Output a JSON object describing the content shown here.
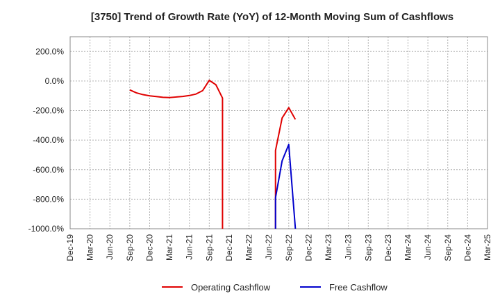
{
  "chart_data": {
    "type": "line",
    "title": "[3750]  Trend of Growth Rate (YoY) of 12-Month Moving Sum of Cashflows",
    "xlabel": "",
    "ylabel": "",
    "x_ticks": [
      "Dec-19",
      "Mar-20",
      "Jun-20",
      "Sep-20",
      "Dec-20",
      "Mar-21",
      "Jun-21",
      "Sep-21",
      "Dec-21",
      "Mar-22",
      "Jun-22",
      "Sep-22",
      "Dec-22",
      "Mar-23",
      "Jun-23",
      "Sep-23",
      "Dec-23",
      "Mar-24",
      "Jun-24",
      "Sep-24",
      "Dec-24",
      "Mar-25"
    ],
    "y_ticks": [
      "200.0%",
      "0.0%",
      "-200.0%",
      "-400.0%",
      "-600.0%",
      "-800.0%",
      "-1000.0%"
    ],
    "ylim": [
      -1000,
      300
    ],
    "grid": true,
    "legend_position": "bottom",
    "series": [
      {
        "name": "Operating Cashflow",
        "color": "#e00000",
        "points": [
          [
            "Sep-20",
            -60
          ],
          [
            "Oct-20",
            -80
          ],
          [
            "Nov-20",
            -92
          ],
          [
            "Dec-20",
            -100
          ],
          [
            "Jan-21",
            -105
          ],
          [
            "Feb-21",
            -110
          ],
          [
            "Mar-21",
            -112
          ],
          [
            "Apr-21",
            -108
          ],
          [
            "May-21",
            -104
          ],
          [
            "Jun-21",
            -98
          ],
          [
            "Jul-21",
            -88
          ],
          [
            "Aug-21",
            -65
          ],
          [
            "Sep-21",
            5
          ],
          [
            "Oct-21",
            -25
          ],
          [
            "Nov-21",
            -115
          ],
          [
            "Nov-21",
            -1000
          ]
        ]
      },
      {
        "name": "Operating Cashflow",
        "color": "#e00000",
        "points": [
          [
            "Jul-22",
            -1000
          ],
          [
            "Jul-22",
            -470
          ],
          [
            "Aug-22",
            -250
          ],
          [
            "Sep-22",
            -180
          ],
          [
            "Oct-22",
            -260
          ]
        ]
      },
      {
        "name": "Free Cashflow",
        "color": "#0000cc",
        "points": [
          [
            "Jul-22",
            -1000
          ],
          [
            "Jul-22",
            -790
          ],
          [
            "Aug-22",
            -540
          ],
          [
            "Sep-22",
            -430
          ],
          [
            "Oct-22",
            -1000
          ]
        ]
      }
    ],
    "legend": [
      {
        "label": "Operating Cashflow",
        "color": "#e00000"
      },
      {
        "label": "Free Cashflow",
        "color": "#0000cc"
      }
    ]
  }
}
